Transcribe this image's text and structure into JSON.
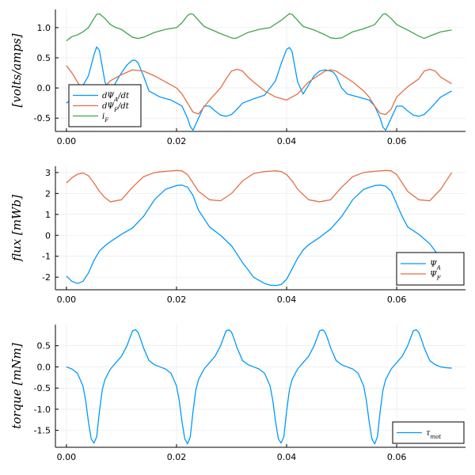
{
  "chart_data": [
    {
      "type": "line",
      "ylabel": "[volts/amps]",
      "xlim": [
        -0.002,
        0.0725
      ],
      "ylim": [
        -0.72,
        1.3
      ],
      "xticks": [
        0.0,
        0.02,
        0.04,
        0.06
      ],
      "xtick_labels": [
        "0.00",
        "0.02",
        "0.04",
        "0.06"
      ],
      "yticks": [
        -0.5,
        0.0,
        0.5,
        1.0
      ],
      "ytick_labels": [
        "-0.5",
        "0.0",
        "0.5",
        "1.0"
      ],
      "grid": true,
      "legend": "bottom-left",
      "series": [
        {
          "name": "dΨ_A/dt",
          "color": "#009AFA",
          "x": [
            0,
            0.002,
            0.004,
            0.005,
            0.0055,
            0.006,
            0.007,
            0.008,
            0.009,
            0.01,
            0.011,
            0.012,
            0.0125,
            0.013,
            0.014,
            0.015,
            0.017,
            0.019,
            0.021,
            0.022,
            0.0225,
            0.023,
            0.024,
            0.025,
            0.026,
            0.027,
            0.028,
            0.029,
            0.03,
            0.031,
            0.032,
            0.034,
            0.036,
            0.038,
            0.039,
            0.04,
            0.0405,
            0.041,
            0.042,
            0.043,
            0.044,
            0.045,
            0.046,
            0.047,
            0.048,
            0.0485,
            0.049,
            0.05,
            0.051,
            0.053,
            0.055,
            0.056,
            0.057,
            0.0575,
            0.058,
            0.059,
            0.06,
            0.061,
            0.062,
            0.063,
            0.064,
            0.065,
            0.066,
            0.068,
            0.07
          ],
          "y": [
            -0.25,
            -0.12,
            0.2,
            0.55,
            0.68,
            0.62,
            0.1,
            -0.1,
            0.1,
            0.25,
            0.38,
            0.46,
            0.46,
            0.42,
            0.2,
            -0.05,
            -0.15,
            -0.2,
            -0.3,
            -0.5,
            -0.64,
            -0.7,
            -0.5,
            -0.3,
            -0.3,
            -0.38,
            -0.45,
            -0.47,
            -0.44,
            -0.35,
            -0.25,
            -0.18,
            -0.12,
            0.12,
            0.4,
            0.64,
            0.67,
            0.6,
            0.1,
            -0.1,
            0.05,
            0.2,
            0.28,
            0.3,
            0.28,
            0.26,
            0.2,
            0.0,
            -0.1,
            -0.15,
            -0.2,
            -0.3,
            -0.5,
            -0.65,
            -0.7,
            -0.5,
            -0.3,
            -0.3,
            -0.38,
            -0.45,
            -0.47,
            -0.44,
            -0.35,
            -0.15,
            -0.05
          ]
        },
        {
          "name": "dΨ_F/dt",
          "color": "#E26F46",
          "x": [
            0,
            0.001,
            0.002,
            0.003,
            0.004,
            0.005,
            0.006,
            0.007,
            0.008,
            0.01,
            0.012,
            0.014,
            0.016,
            0.018,
            0.02,
            0.021,
            0.022,
            0.023,
            0.024,
            0.026,
            0.028,
            0.029,
            0.03,
            0.031,
            0.032,
            0.033,
            0.034,
            0.036,
            0.038,
            0.04,
            0.042,
            0.044,
            0.046,
            0.047,
            0.048,
            0.049,
            0.05,
            0.052,
            0.054,
            0.055,
            0.056,
            0.057,
            0.058,
            0.059,
            0.06,
            0.062,
            0.064,
            0.065,
            0.066,
            0.067,
            0.068,
            0.07
          ],
          "y": [
            0.37,
            0.25,
            0.1,
            -0.05,
            -0.15,
            -0.2,
            -0.15,
            0.02,
            0.12,
            0.22,
            0.3,
            0.28,
            0.2,
            0.1,
            0.0,
            -0.1,
            -0.25,
            -0.4,
            -0.43,
            -0.2,
            0.0,
            0.15,
            0.28,
            0.31,
            0.28,
            0.18,
            0.1,
            -0.05,
            -0.15,
            -0.2,
            -0.1,
            0.1,
            0.22,
            0.28,
            0.3,
            0.28,
            0.22,
            0.1,
            -0.05,
            -0.15,
            -0.3,
            -0.42,
            -0.44,
            -0.35,
            -0.15,
            0.02,
            0.15,
            0.28,
            0.31,
            0.28,
            0.18,
            0.07
          ]
        },
        {
          "name": "i_F",
          "color": "#3EA44E",
          "x": [
            0,
            0.001,
            0.002,
            0.003,
            0.004,
            0.005,
            0.0055,
            0.006,
            0.007,
            0.008,
            0.009,
            0.01,
            0.012,
            0.013,
            0.014,
            0.016,
            0.018,
            0.02,
            0.021,
            0.022,
            0.0225,
            0.023,
            0.024,
            0.025,
            0.026,
            0.028,
            0.03,
            0.0305,
            0.031,
            0.033,
            0.035,
            0.037,
            0.039,
            0.0405,
            0.041,
            0.042,
            0.043,
            0.045,
            0.047,
            0.048,
            0.049,
            0.05,
            0.052,
            0.054,
            0.056,
            0.0575,
            0.058,
            0.059,
            0.06,
            0.062,
            0.064,
            0.065,
            0.066,
            0.068,
            0.07
          ],
          "y": [
            0.78,
            0.85,
            0.88,
            0.93,
            1.0,
            1.15,
            1.22,
            1.23,
            1.15,
            1.05,
            1.0,
            0.97,
            0.84,
            0.82,
            0.84,
            0.92,
            0.97,
            1.0,
            1.08,
            1.2,
            1.23,
            1.22,
            1.12,
            1.02,
            0.98,
            0.9,
            0.83,
            0.82,
            0.83,
            0.92,
            0.97,
            1.0,
            1.12,
            1.23,
            1.22,
            1.12,
            1.02,
            0.96,
            0.88,
            0.83,
            0.82,
            0.83,
            0.93,
            0.98,
            1.05,
            1.22,
            1.23,
            1.15,
            1.05,
            0.96,
            0.86,
            0.82,
            0.86,
            0.93,
            0.96
          ]
        }
      ]
    },
    {
      "type": "line",
      "ylabel": "flux  [mWb]",
      "xlim": [
        -0.002,
        0.0725
      ],
      "ylim": [
        -2.6,
        3.3
      ],
      "xticks": [
        0.0,
        0.02,
        0.04,
        0.06
      ],
      "xtick_labels": [
        "0.00",
        "0.02",
        "0.04",
        "0.06"
      ],
      "yticks": [
        -2,
        -1,
        0,
        1,
        2,
        3
      ],
      "ytick_labels": [
        "-2",
        "-1",
        "0",
        "1",
        "2",
        "3"
      ],
      "grid": true,
      "legend": "bottom-right",
      "series": [
        {
          "name": "Ψ_A",
          "color": "#009AFA",
          "x": [
            0,
            0.001,
            0.002,
            0.003,
            0.004,
            0.005,
            0.006,
            0.007,
            0.008,
            0.01,
            0.012,
            0.014,
            0.016,
            0.018,
            0.02,
            0.021,
            0.022,
            0.023,
            0.024,
            0.026,
            0.028,
            0.03,
            0.032,
            0.034,
            0.036,
            0.037,
            0.038,
            0.039,
            0.04,
            0.041,
            0.042,
            0.043,
            0.044,
            0.046,
            0.048,
            0.05,
            0.052,
            0.054,
            0.056,
            0.057,
            0.058,
            0.059,
            0.06,
            0.061,
            0.062,
            0.064,
            0.066,
            0.068,
            0.07
          ],
          "y": [
            -1.95,
            -2.2,
            -2.3,
            -2.2,
            -1.8,
            -1.2,
            -0.75,
            -0.5,
            -0.3,
            0.05,
            0.35,
            0.9,
            1.7,
            2.2,
            2.38,
            2.4,
            2.3,
            1.9,
            1.2,
            0.4,
            0.0,
            -0.5,
            -1.3,
            -2.0,
            -2.3,
            -2.38,
            -2.4,
            -2.35,
            -2.1,
            -1.6,
            -1.1,
            -0.7,
            -0.45,
            -0.1,
            0.3,
            0.9,
            1.7,
            2.2,
            2.38,
            2.4,
            2.35,
            2.1,
            1.5,
            0.9,
            0.4,
            0.05,
            -0.4,
            -1.1,
            -2.0
          ]
        },
        {
          "name": "Ψ_F",
          "color": "#E26F46",
          "x": [
            0,
            0.001,
            0.002,
            0.003,
            0.004,
            0.005,
            0.006,
            0.007,
            0.008,
            0.01,
            0.012,
            0.014,
            0.016,
            0.018,
            0.02,
            0.021,
            0.022,
            0.023,
            0.024,
            0.026,
            0.028,
            0.03,
            0.032,
            0.034,
            0.036,
            0.038,
            0.039,
            0.04,
            0.041,
            0.042,
            0.044,
            0.046,
            0.048,
            0.05,
            0.052,
            0.054,
            0.056,
            0.058,
            0.059,
            0.06,
            0.061,
            0.062,
            0.064,
            0.066,
            0.068,
            0.07
          ],
          "y": [
            2.5,
            2.75,
            2.92,
            2.98,
            2.85,
            2.5,
            2.1,
            1.8,
            1.6,
            1.7,
            2.3,
            2.8,
            3.0,
            3.06,
            3.1,
            3.08,
            2.9,
            2.5,
            2.1,
            1.7,
            1.65,
            2.0,
            2.6,
            2.95,
            3.05,
            3.08,
            3.05,
            2.9,
            2.6,
            2.2,
            1.7,
            1.6,
            1.7,
            2.3,
            2.8,
            3.0,
            3.06,
            3.1,
            3.08,
            2.9,
            2.5,
            2.1,
            1.7,
            1.65,
            2.2,
            3.0
          ]
        }
      ]
    },
    {
      "type": "line",
      "ylabel": "torque  [mNm]",
      "xlim": [
        -0.002,
        0.0725
      ],
      "ylim": [
        -1.9,
        1.0
      ],
      "xticks": [
        0.0,
        0.02,
        0.04,
        0.06
      ],
      "xtick_labels": [
        "0.00",
        "0.02",
        "0.04",
        "0.06"
      ],
      "yticks": [
        -1.5,
        -1.0,
        -0.5,
        0.0,
        0.5
      ],
      "ytick_labels": [
        "-1.5",
        "-1.0",
        "-0.5",
        "0.0",
        "0.5"
      ],
      "grid": true,
      "legend": "bottom-right",
      "series": [
        {
          "name": "τ_mot",
          "color": "#009AFA",
          "x": [
            0,
            0.001,
            0.002,
            0.003,
            0.0035,
            0.004,
            0.0045,
            0.005,
            0.0055,
            0.006,
            0.0065,
            0.007,
            0.008,
            0.009,
            0.01,
            0.011,
            0.012,
            0.0125,
            0.013,
            0.0135,
            0.014,
            0.015,
            0.016,
            0.017,
            0.018,
            0.019,
            0.02,
            0.0205,
            0.021,
            0.0215,
            0.022,
            0.0225,
            0.023,
            0.0235,
            0.024,
            0.025,
            0.026,
            0.027,
            0.028,
            0.029,
            0.0295,
            0.03,
            0.0305,
            0.031,
            0.032,
            0.033,
            0.034,
            0.035,
            0.036,
            0.037,
            0.0375,
            0.038,
            0.0385,
            0.039,
            0.0395,
            0.04,
            0.0405,
            0.041,
            0.042,
            0.043,
            0.044,
            0.045,
            0.046,
            0.0465,
            0.047,
            0.0475,
            0.048,
            0.049,
            0.05,
            0.051,
            0.052,
            0.053,
            0.054,
            0.0545,
            0.055,
            0.0555,
            0.056,
            0.0565,
            0.057,
            0.0575,
            0.058,
            0.059,
            0.06,
            0.061,
            0.062,
            0.063,
            0.0635,
            0.064,
            0.0645,
            0.065,
            0.066,
            0.067,
            0.068,
            0.069,
            0.07
          ],
          "y": [
            0.0,
            -0.05,
            -0.15,
            -0.45,
            -0.8,
            -1.3,
            -1.7,
            -1.8,
            -1.65,
            -1.05,
            -0.55,
            -0.3,
            -0.05,
            0.1,
            0.25,
            0.5,
            0.85,
            0.88,
            0.82,
            0.65,
            0.45,
            0.15,
            0.05,
            0.0,
            -0.05,
            -0.15,
            -0.45,
            -0.8,
            -1.3,
            -1.7,
            -1.82,
            -1.65,
            -1.05,
            -0.55,
            -0.3,
            -0.05,
            0.1,
            0.25,
            0.5,
            0.85,
            0.88,
            0.82,
            0.65,
            0.45,
            0.15,
            0.05,
            0.0,
            -0.05,
            -0.15,
            -0.45,
            -0.8,
            -1.3,
            -1.7,
            -1.8,
            -1.65,
            -1.05,
            -0.55,
            -0.3,
            -0.05,
            0.1,
            0.25,
            0.5,
            0.85,
            0.88,
            0.82,
            0.65,
            0.45,
            0.15,
            0.05,
            0.0,
            -0.05,
            -0.15,
            -0.45,
            -0.8,
            -1.3,
            -1.7,
            -1.82,
            -1.65,
            -1.05,
            -0.55,
            -0.3,
            -0.05,
            0.1,
            0.25,
            0.5,
            0.85,
            0.88,
            0.82,
            0.65,
            0.45,
            0.15,
            0.05,
            0.0,
            -0.02,
            -0.03
          ]
        }
      ]
    }
  ]
}
